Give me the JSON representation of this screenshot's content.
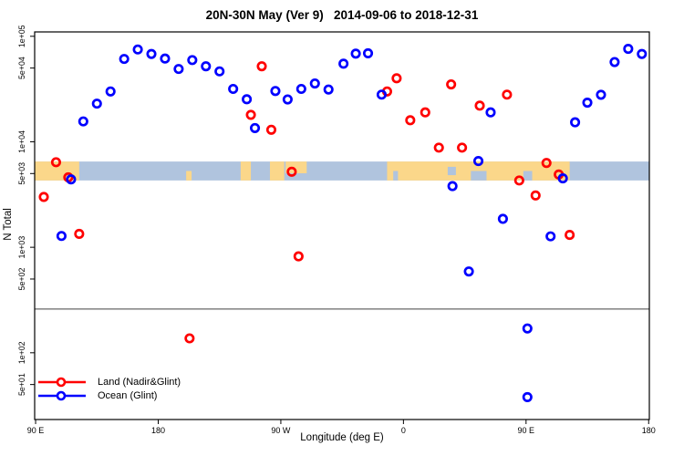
{
  "figure": {
    "background": "#FFFFFF"
  },
  "chart_data": {
    "type": "scatter",
    "title": "20N-30N May (Ver 9)   2014-09-06 to 2018-12-31",
    "xlabel": "Longitude (deg E)",
    "ylabel": "N Total",
    "grid": false,
    "legend_position": "bottom-left",
    "x_axis": {
      "lim": [
        89.3,
        540.5
      ],
      "ticks": [
        90,
        180,
        270,
        360,
        450,
        540
      ],
      "tick_labels": [
        "90 E",
        "180",
        "90 W",
        "0",
        "90 E",
        "180"
      ]
    },
    "y_axis": {
      "scale": "log",
      "lim": [
        23.3,
        110000
      ],
      "ticks": [
        100000,
        50000,
        10000,
        5000,
        1000,
        500,
        100,
        50
      ],
      "tick_labels": [
        "1e+05",
        "5e+04",
        "1e+04",
        "5e+03",
        "1e+03",
        "5e+02",
        "1e+02",
        "5e+01"
      ]
    },
    "reference_line_y": 260,
    "series": [
      {
        "name": "Land (Nadir&Glint)",
        "color": "#FF0000",
        "marker": "open-circle",
        "points": [
          [
            96,
            3000
          ],
          [
            105,
            6400
          ],
          [
            114,
            4600
          ],
          [
            122,
            1340
          ],
          [
            203,
            137
          ],
          [
            248,
            18000
          ],
          [
            256,
            52000
          ],
          [
            263,
            13000
          ],
          [
            278,
            5200
          ],
          [
            283,
            820
          ],
          [
            348,
            30000
          ],
          [
            355,
            40000
          ],
          [
            365,
            16000
          ],
          [
            376,
            19000
          ],
          [
            386,
            8800
          ],
          [
            395,
            35000
          ],
          [
            403,
            8800
          ],
          [
            416,
            22000
          ],
          [
            436,
            28000
          ],
          [
            445,
            4300
          ],
          [
            457,
            3100
          ],
          [
            465,
            6300
          ],
          [
            474,
            4900
          ],
          [
            482,
            1310
          ]
        ]
      },
      {
        "name": "Ocean (Glint)",
        "color": "#0000FF",
        "marker": "open-circle",
        "points": [
          [
            109,
            1280
          ],
          [
            116,
            4400
          ],
          [
            125,
            15600
          ],
          [
            135,
            23000
          ],
          [
            145,
            30000
          ],
          [
            155,
            61000
          ],
          [
            165,
            75000
          ],
          [
            175,
            68000
          ],
          [
            185,
            61500
          ],
          [
            195,
            49000
          ],
          [
            205,
            59500
          ],
          [
            215,
            52000
          ],
          [
            225,
            46500
          ],
          [
            235,
            31700
          ],
          [
            245,
            25300
          ],
          [
            251,
            13500
          ],
          [
            266,
            30300
          ],
          [
            275,
            25200
          ],
          [
            285,
            31700
          ],
          [
            295,
            35700
          ],
          [
            305,
            31300
          ],
          [
            316,
            55000
          ],
          [
            325,
            68500
          ],
          [
            334,
            69000
          ],
          [
            344,
            28000
          ],
          [
            396,
            3800
          ],
          [
            408,
            590
          ],
          [
            415,
            6570
          ],
          [
            424,
            19000
          ],
          [
            433,
            1860
          ],
          [
            451,
            170
          ],
          [
            451,
            38
          ],
          [
            468,
            1270
          ],
          [
            477,
            4500
          ],
          [
            486,
            15300
          ],
          [
            495,
            23500
          ],
          [
            505,
            27900
          ],
          [
            515,
            57000
          ],
          [
            525,
            76000
          ],
          [
            535,
            68000
          ]
        ]
      }
    ],
    "map_band": {
      "value_top": 6500,
      "value_bottom": 4300,
      "ocean_color": "#B0C4DE",
      "land_color": "#FBD78A",
      "land_segments": [
        {
          "from": 89.3,
          "to": 122,
          "part": "full"
        },
        {
          "from": 200.5,
          "to": 204.5,
          "part": "bottom"
        },
        {
          "from": 240.5,
          "to": 248,
          "part": "full"
        },
        {
          "from": 262,
          "to": 272.5,
          "part": "full"
        },
        {
          "from": 273.5,
          "to": 289,
          "part": "top"
        },
        {
          "from": 348,
          "to": 482,
          "part": "full"
        }
      ],
      "ocean_patches": [
        {
          "from": 352.5,
          "to": 356,
          "part": "bottom"
        },
        {
          "from": 392.5,
          "to": 398.5,
          "part": "mid"
        },
        {
          "from": 409.5,
          "to": 421,
          "part": "bottom"
        },
        {
          "from": 448,
          "to": 454.5,
          "part": "bottom"
        }
      ]
    }
  }
}
